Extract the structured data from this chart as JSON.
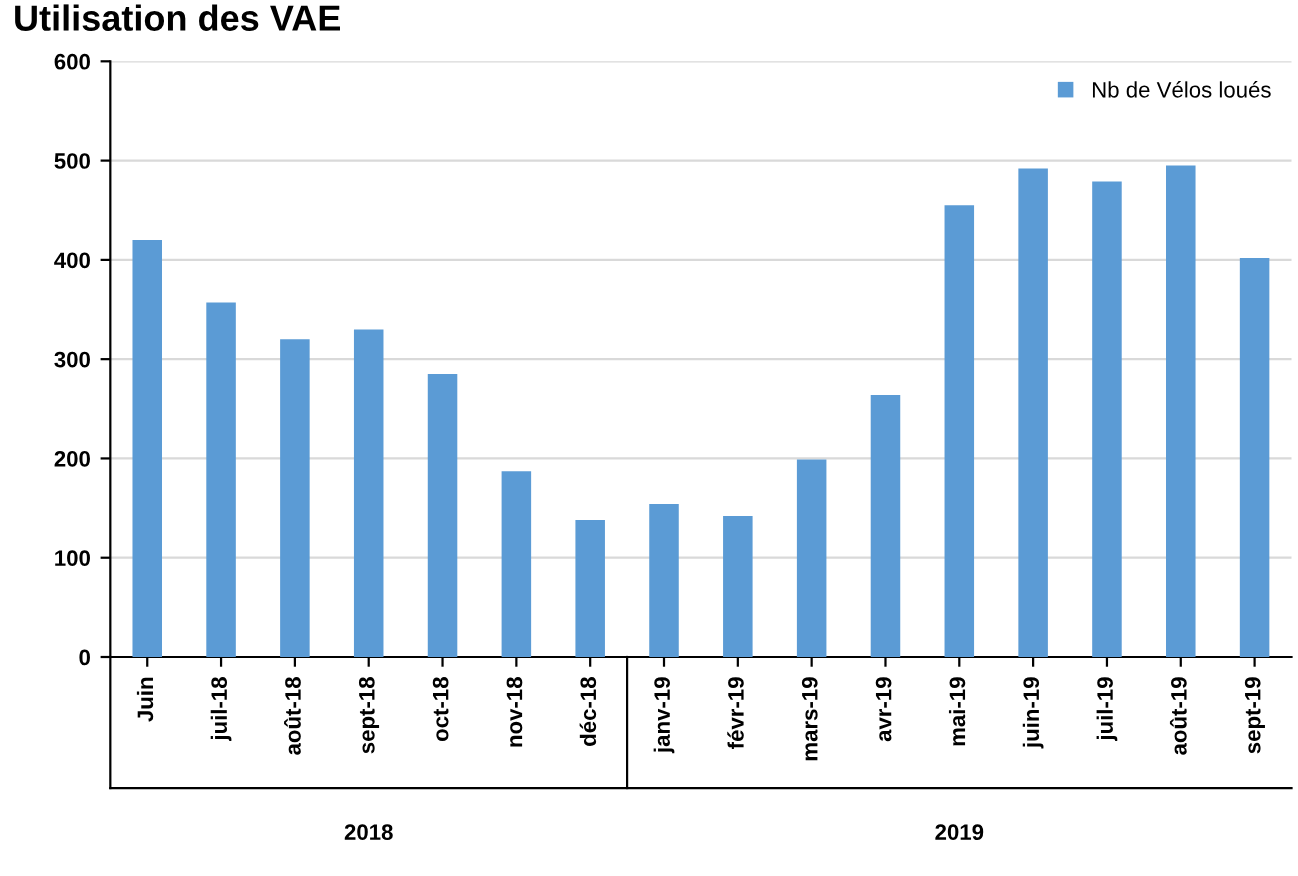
{
  "chart_data": {
    "type": "bar",
    "title": "Utilisation des VAE",
    "categories": [
      "Juin",
      "juil-18",
      "août-18",
      "sept-18",
      "oct-18",
      "nov-18",
      "déc-18",
      "janv-19",
      "févr-19",
      "mars-19",
      "avr-19",
      "mai-19",
      "juin-19",
      "juil-19",
      "août-19",
      "sept-19"
    ],
    "series": [
      {
        "name": "Nb de Vélos loués",
        "color": "#5b9bd5",
        "values": [
          420,
          357,
          320,
          330,
          285,
          187,
          138,
          154,
          142,
          199,
          264,
          455,
          492,
          479,
          495,
          402
        ]
      }
    ],
    "ylim": [
      0,
      600
    ],
    "yticks": [
      0,
      100,
      200,
      300,
      400,
      500,
      600
    ],
    "grid": "y",
    "legend": "top right",
    "annotations": [
      "2018",
      "2019"
    ]
  }
}
